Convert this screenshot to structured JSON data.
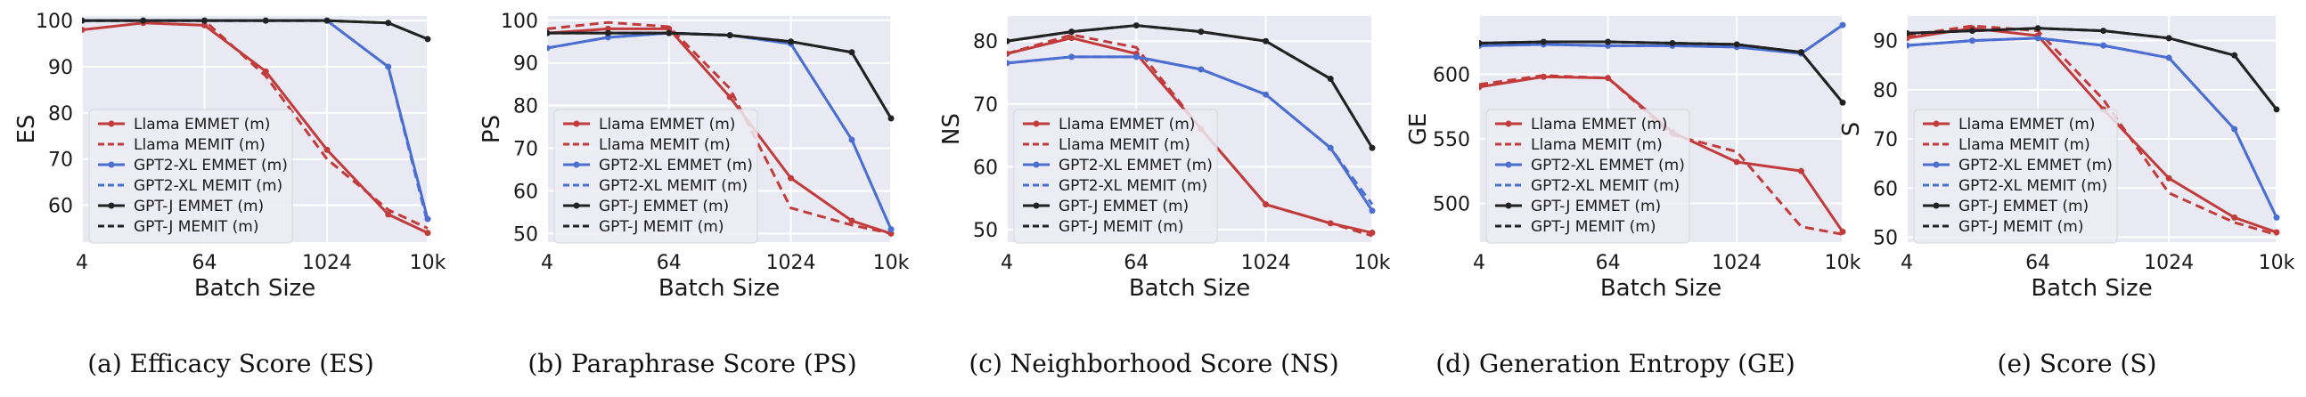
{
  "colors": {
    "plot_background": "#e9e9f3",
    "grid": "#ffffff",
    "llama": "#c23b3b",
    "gpt2xl": "#4a6fd1",
    "gptj": "#222222",
    "text": "#1a1a1a"
  },
  "chart_data": [
    {
      "type": "line",
      "caption": "(a) Efficacy Score (ES)",
      "xlabel": "Batch Size",
      "ylabel": "ES",
      "x": [
        4,
        16,
        64,
        256,
        1024,
        4096,
        10000
      ],
      "xticks": [
        "4",
        "64",
        "1024",
        "10k"
      ],
      "x_scale": "log",
      "ylim": [
        52,
        101
      ],
      "yticks": [
        60,
        70,
        80,
        90,
        100
      ],
      "grid": true,
      "legend_position": "center-left",
      "series": [
        {
          "name": "Llama EMMET (m)",
          "color": "#c23b3b",
          "dash": "solid",
          "values": [
            98,
            99.5,
            99,
            89,
            72,
            58,
            54
          ]
        },
        {
          "name": "Llama MEMIT (m)",
          "color": "#c23b3b",
          "dash": "dashed",
          "values": [
            100,
            100,
            100,
            88,
            70,
            59,
            55
          ]
        },
        {
          "name": "GPT2-XL EMMET (m)",
          "color": "#4a6fd1",
          "dash": "solid",
          "values": [
            100,
            100,
            100,
            100,
            100,
            90,
            57
          ]
        },
        {
          "name": "GPT2-XL MEMIT (m)",
          "color": "#4a6fd1",
          "dash": "dashed",
          "values": [
            100,
            100,
            100,
            100,
            100,
            90,
            56
          ]
        },
        {
          "name": "GPT-J EMMET (m)",
          "color": "#222222",
          "dash": "solid",
          "values": [
            100,
            100,
            100,
            100,
            100,
            99.5,
            96
          ]
        },
        {
          "name": "GPT-J MEMIT (m)",
          "color": "#222222",
          "dash": "dashed",
          "values": [
            100,
            100,
            100,
            100,
            100,
            99.5,
            96
          ]
        }
      ]
    },
    {
      "type": "line",
      "caption": "(b) Paraphrase Score (PS)",
      "xlabel": "Batch Size",
      "ylabel": "PS",
      "x": [
        4,
        16,
        64,
        256,
        1024,
        4096,
        10000
      ],
      "xticks": [
        "4",
        "64",
        "1024",
        "10k"
      ],
      "x_scale": "log",
      "ylim": [
        48,
        101
      ],
      "yticks": [
        50,
        60,
        70,
        80,
        90,
        100
      ],
      "grid": true,
      "legend_position": "center-left",
      "series": [
        {
          "name": "Llama EMMET (m)",
          "color": "#c23b3b",
          "dash": "solid",
          "values": [
            97,
            98,
            98,
            82,
            63,
            53,
            50
          ]
        },
        {
          "name": "Llama MEMIT (m)",
          "color": "#c23b3b",
          "dash": "dashed",
          "values": [
            98,
            99.5,
            98.5,
            84,
            56,
            52,
            50
          ]
        },
        {
          "name": "GPT2-XL EMMET (m)",
          "color": "#4a6fd1",
          "dash": "solid",
          "values": [
            93.5,
            96,
            97,
            96.5,
            94.5,
            72,
            51
          ]
        },
        {
          "name": "GPT2-XL MEMIT (m)",
          "color": "#4a6fd1",
          "dash": "dashed",
          "values": [
            93.5,
            96,
            97,
            96.5,
            94.5,
            72,
            51
          ]
        },
        {
          "name": "GPT-J EMMET (m)",
          "color": "#222222",
          "dash": "solid",
          "values": [
            97,
            97,
            97,
            96.5,
            95,
            92.5,
            77
          ]
        },
        {
          "name": "GPT-J MEMIT (m)",
          "color": "#222222",
          "dash": "dashed",
          "values": [
            97,
            97,
            97,
            96.5,
            95,
            92.5,
            77
          ]
        }
      ]
    },
    {
      "type": "line",
      "caption": "(c) Neighborhood Score (NS)",
      "xlabel": "Batch Size",
      "ylabel": "NS",
      "x": [
        4,
        16,
        64,
        256,
        1024,
        4096,
        10000
      ],
      "xticks": [
        "4",
        "64",
        "1024",
        "10k"
      ],
      "x_scale": "log",
      "ylim": [
        48,
        84
      ],
      "yticks": [
        50,
        60,
        70,
        80
      ],
      "grid": true,
      "legend_position": "center-left",
      "series": [
        {
          "name": "Llama EMMET (m)",
          "color": "#c23b3b",
          "dash": "solid",
          "values": [
            78,
            80.5,
            78,
            66,
            54,
            51,
            49.5
          ]
        },
        {
          "name": "Llama MEMIT (m)",
          "color": "#c23b3b",
          "dash": "dashed",
          "values": [
            78,
            81,
            79,
            66,
            54,
            51,
            49
          ]
        },
        {
          "name": "GPT2-XL EMMET (m)",
          "color": "#4a6fd1",
          "dash": "solid",
          "values": [
            76.5,
            77.5,
            77.5,
            75.5,
            71.5,
            63,
            53
          ]
        },
        {
          "name": "GPT2-XL MEMIT (m)",
          "color": "#4a6fd1",
          "dash": "dashed",
          "values": [
            76.5,
            77.5,
            77.5,
            75.5,
            71.5,
            63,
            54
          ]
        },
        {
          "name": "GPT-J EMMET (m)",
          "color": "#222222",
          "dash": "solid",
          "values": [
            80,
            81.5,
            82.5,
            81.5,
            80,
            74,
            63
          ]
        },
        {
          "name": "GPT-J MEMIT (m)",
          "color": "#222222",
          "dash": "dashed",
          "values": [
            80,
            81.5,
            82.5,
            81.5,
            80,
            74,
            63
          ]
        }
      ]
    },
    {
      "type": "line",
      "caption": "(d) Generation Entropy (GE)",
      "xlabel": "Batch Size",
      "ylabel": "GE",
      "x": [
        4,
        16,
        64,
        256,
        1024,
        4096,
        10000
      ],
      "xticks": [
        "4",
        "64",
        "1024",
        "10k"
      ],
      "x_scale": "log",
      "ylim": [
        470,
        645
      ],
      "yticks": [
        500,
        550,
        600
      ],
      "grid": true,
      "legend_position": "center-left",
      "series": [
        {
          "name": "Llama EMMET (m)",
          "color": "#c23b3b",
          "dash": "solid",
          "values": [
            590,
            598,
            597,
            555,
            532,
            525,
            478
          ]
        },
        {
          "name": "Llama MEMIT (m)",
          "color": "#c23b3b",
          "dash": "dashed",
          "values": [
            592,
            599,
            597,
            553,
            540,
            482,
            476
          ]
        },
        {
          "name": "GPT2-XL EMMET (m)",
          "color": "#4a6fd1",
          "dash": "solid",
          "values": [
            622,
            623,
            622,
            622,
            621,
            616,
            638
          ]
        },
        {
          "name": "GPT2-XL MEMIT (m)",
          "color": "#4a6fd1",
          "dash": "dashed",
          "values": [
            622,
            623,
            622,
            622,
            621,
            616,
            638
          ]
        },
        {
          "name": "GPT-J EMMET (m)",
          "color": "#222222",
          "dash": "solid",
          "values": [
            624,
            625,
            625,
            624,
            623,
            617,
            578
          ]
        },
        {
          "name": "GPT-J MEMIT (m)",
          "color": "#222222",
          "dash": "dashed",
          "values": [
            624,
            625,
            625,
            624,
            623,
            617,
            578
          ]
        }
      ]
    },
    {
      "type": "line",
      "caption": "(e) Score (S)",
      "xlabel": "Batch Size",
      "ylabel": "S",
      "x": [
        4,
        16,
        64,
        256,
        1024,
        4096,
        10000
      ],
      "xticks": [
        "4",
        "64",
        "1024",
        "10k"
      ],
      "x_scale": "log",
      "ylim": [
        49,
        95
      ],
      "yticks": [
        50,
        60,
        70,
        80,
        90
      ],
      "grid": true,
      "legend_position": "center-left",
      "series": [
        {
          "name": "Llama EMMET (m)",
          "color": "#c23b3b",
          "dash": "solid",
          "values": [
            90.5,
            92.5,
            91,
            76,
            62,
            54,
            51
          ]
        },
        {
          "name": "Llama MEMIT (m)",
          "color": "#c23b3b",
          "dash": "dashed",
          "values": [
            91,
            93,
            92,
            78,
            59,
            53,
            50.5
          ]
        },
        {
          "name": "GPT2-XL EMMET (m)",
          "color": "#4a6fd1",
          "dash": "solid",
          "values": [
            89,
            90,
            90.5,
            89,
            86.5,
            72,
            54
          ]
        },
        {
          "name": "GPT2-XL MEMIT (m)",
          "color": "#4a6fd1",
          "dash": "dashed",
          "values": [
            89,
            90,
            90.5,
            89,
            86.5,
            72,
            54
          ]
        },
        {
          "name": "GPT-J EMMET (m)",
          "color": "#222222",
          "dash": "solid",
          "values": [
            91.5,
            92,
            92.5,
            92,
            90.5,
            87,
            76
          ]
        },
        {
          "name": "GPT-J MEMIT (m)",
          "color": "#222222",
          "dash": "dashed",
          "values": [
            91.5,
            92,
            92.5,
            92,
            90.5,
            87,
            76
          ]
        }
      ]
    }
  ]
}
